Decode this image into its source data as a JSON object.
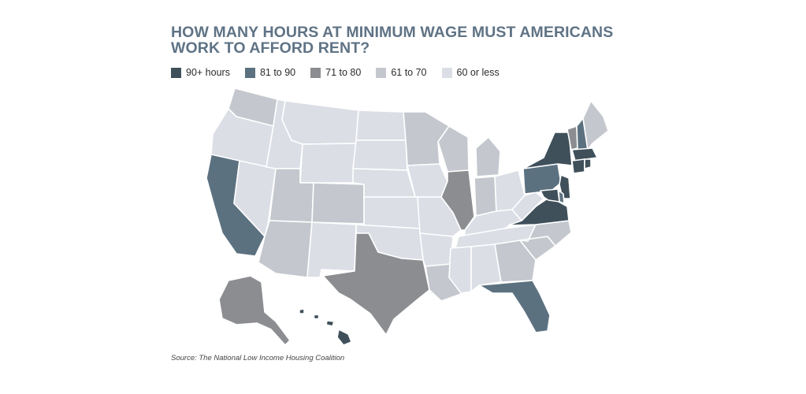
{
  "title": "HOW MANY HOURS AT MINIMUM WAGE MUST AMERICANS WORK TO AFFORD RENT?",
  "legend": [
    {
      "label": "90+ hours",
      "color": "#3f505b"
    },
    {
      "label": "81 to 90",
      "color": "#5c7180"
    },
    {
      "label": "71 to 80",
      "color": "#8b8d90"
    },
    {
      "label": "61 to 70",
      "color": "#c4c7cd"
    },
    {
      "label": "60 or less",
      "color": "#dcdee6"
    }
  ],
  "source": "Source: The National Low Income Housing Coalition",
  "states": {
    "WA": 3,
    "OR": 4,
    "CA": 1,
    "NV": 4,
    "ID": 4,
    "MT": 4,
    "WY": 4,
    "UT": 3,
    "AZ": 3,
    "CO": 3,
    "NM": 4,
    "ND": 4,
    "SD": 4,
    "NE": 4,
    "KS": 4,
    "OK": 4,
    "TX": 2,
    "MN": 3,
    "IA": 4,
    "MO": 4,
    "AR": 4,
    "LA": 3,
    "WI": 3,
    "IL": 2,
    "MI": 3,
    "IN": 3,
    "OH": 4,
    "KY": 4,
    "TN": 4,
    "MS": 4,
    "AL": 4,
    "GA": 3,
    "FL": 1,
    "SC": 3,
    "NC": 3,
    "VA": 0,
    "WV": 4,
    "PA": 1,
    "NY": 0,
    "VT": 2,
    "NH": 1,
    "ME": 3,
    "MA": 0,
    "CT": 0,
    "RI": 0,
    "NJ": 0,
    "DE": 1,
    "MD": 0,
    "AK": 2,
    "HI": 0
  }
}
